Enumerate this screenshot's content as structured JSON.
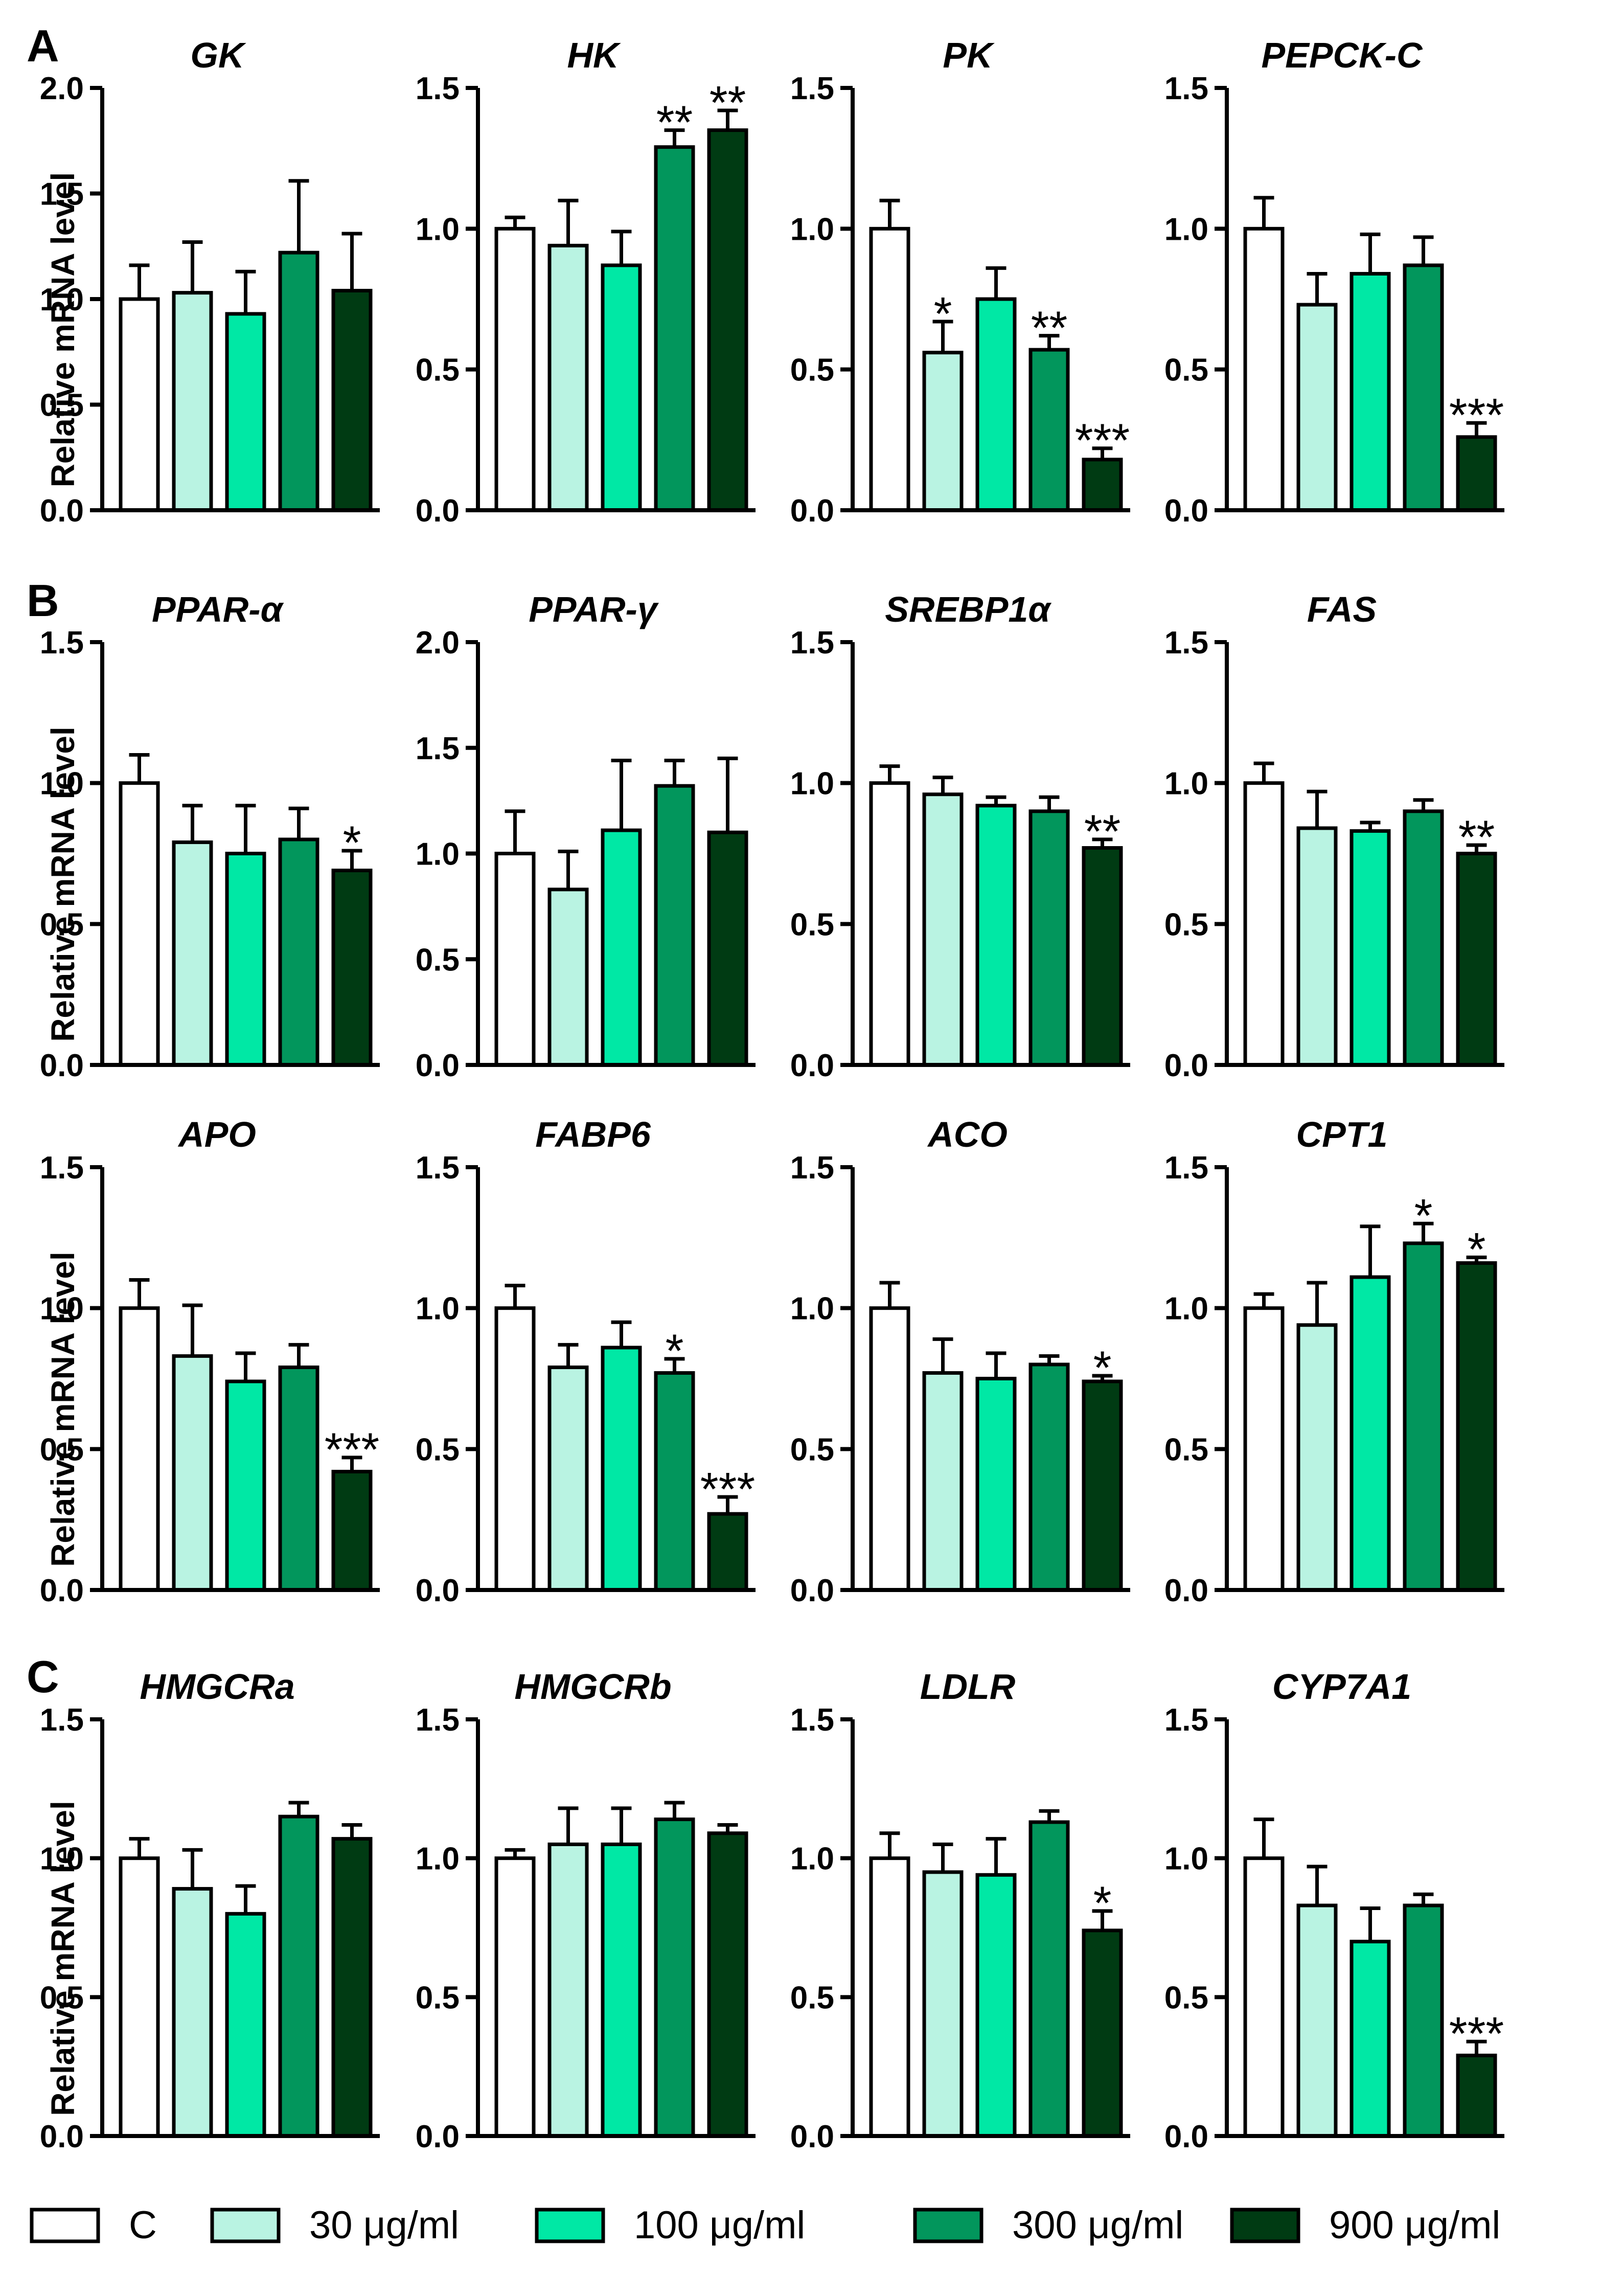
{
  "groups": [
    {
      "key": "C",
      "label": "C",
      "color": "#ffffff"
    },
    {
      "key": "d30",
      "label": "30 μg/ml",
      "color": "#b9f3e2"
    },
    {
      "key": "d100",
      "label": "100 μg/ml",
      "color": "#00e8a5"
    },
    {
      "key": "d300",
      "label": "300 μg/ml",
      "color": "#02965c"
    },
    {
      "key": "d900",
      "label": "900 μg/ml",
      "color": "#003b13"
    }
  ],
  "y_axis_label": "Relative mRNA level",
  "panels": [
    {
      "letter": "A"
    },
    {
      "letter": "B"
    },
    {
      "letter": "C"
    }
  ],
  "chart_data": [
    {
      "type": "bar",
      "title": "GK",
      "ylabel": "Relative mRNA level",
      "ylim": [
        0,
        2.0
      ],
      "yticks": [
        "0.0",
        "0.5",
        "1.0",
        "1.5",
        "2.0"
      ],
      "values": [
        1.0,
        1.03,
        0.93,
        1.22,
        1.04
      ],
      "errors": [
        0.16,
        0.24,
        0.2,
        0.34,
        0.27
      ],
      "significance": [
        "",
        "",
        "",
        "",
        ""
      ]
    },
    {
      "type": "bar",
      "title": "HK",
      "ylim": [
        0,
        1.5
      ],
      "yticks": [
        "0.0",
        "0.5",
        "1.0",
        "1.5"
      ],
      "values": [
        1.0,
        0.94,
        0.87,
        1.29,
        1.35
      ],
      "errors": [
        0.04,
        0.16,
        0.12,
        0.06,
        0.07
      ],
      "significance": [
        "",
        "",
        "",
        "**",
        "**"
      ]
    },
    {
      "type": "bar",
      "title": "PK",
      "ylim": [
        0,
        1.5
      ],
      "yticks": [
        "0.0",
        "0.5",
        "1.0",
        "1.5"
      ],
      "values": [
        1.0,
        0.56,
        0.75,
        0.57,
        0.18
      ],
      "errors": [
        0.1,
        0.11,
        0.11,
        0.05,
        0.04
      ],
      "significance": [
        "",
        "*",
        "",
        "**",
        "***"
      ]
    },
    {
      "type": "bar",
      "title": "PEPCK-C",
      "ylim": [
        0,
        1.5
      ],
      "yticks": [
        "0.0",
        "0.5",
        "1.0",
        "1.5"
      ],
      "values": [
        1.0,
        0.73,
        0.84,
        0.87,
        0.26
      ],
      "errors": [
        0.11,
        0.11,
        0.14,
        0.1,
        0.05
      ],
      "significance": [
        "",
        "",
        "",
        "",
        "***"
      ]
    },
    {
      "type": "bar",
      "title": "PPAR-α",
      "ylim": [
        0,
        1.5
      ],
      "yticks": [
        "0.0",
        "0.5",
        "1.0",
        "1.5"
      ],
      "values": [
        1.0,
        0.79,
        0.75,
        0.8,
        0.69
      ],
      "errors": [
        0.1,
        0.13,
        0.17,
        0.11,
        0.07
      ],
      "significance": [
        "",
        "",
        "",
        "",
        "*"
      ]
    },
    {
      "type": "bar",
      "title": "PPAR-γ",
      "ylim": [
        0,
        2.0
      ],
      "yticks": [
        "0.0",
        "0.5",
        "1.0",
        "1.5",
        "2.0"
      ],
      "values": [
        1.0,
        0.83,
        1.11,
        1.32,
        1.1
      ],
      "errors": [
        0.2,
        0.18,
        0.33,
        0.12,
        0.35
      ],
      "significance": [
        "",
        "",
        "",
        "",
        ""
      ]
    },
    {
      "type": "bar",
      "title": "SREBP1α",
      "ylim": [
        0,
        1.5
      ],
      "yticks": [
        "0.0",
        "0.5",
        "1.0",
        "1.5"
      ],
      "values": [
        1.0,
        0.96,
        0.92,
        0.9,
        0.77
      ],
      "errors": [
        0.06,
        0.06,
        0.03,
        0.05,
        0.03
      ],
      "significance": [
        "",
        "",
        "",
        "",
        "**"
      ]
    },
    {
      "type": "bar",
      "title": "FAS",
      "ylim": [
        0,
        1.5
      ],
      "yticks": [
        "0.0",
        "0.5",
        "1.0",
        "1.5"
      ],
      "values": [
        1.0,
        0.84,
        0.83,
        0.9,
        0.75
      ],
      "errors": [
        0.07,
        0.13,
        0.03,
        0.04,
        0.03
      ],
      "significance": [
        "",
        "",
        "",
        "",
        "**"
      ]
    },
    {
      "type": "bar",
      "title": "APO",
      "ylim": [
        0,
        1.5
      ],
      "yticks": [
        "0.0",
        "0.5",
        "1.0",
        "1.5"
      ],
      "values": [
        1.0,
        0.83,
        0.74,
        0.79,
        0.42
      ],
      "errors": [
        0.1,
        0.18,
        0.1,
        0.08,
        0.05
      ],
      "significance": [
        "",
        "",
        "",
        "",
        "***"
      ]
    },
    {
      "type": "bar",
      "title": "FABP6",
      "ylim": [
        0,
        1.5
      ],
      "yticks": [
        "0.0",
        "0.5",
        "1.0",
        "1.5"
      ],
      "values": [
        1.0,
        0.79,
        0.86,
        0.77,
        0.27
      ],
      "errors": [
        0.08,
        0.08,
        0.09,
        0.05,
        0.06
      ],
      "significance": [
        "",
        "",
        "",
        "*",
        "***"
      ]
    },
    {
      "type": "bar",
      "title": "ACO",
      "ylim": [
        0,
        1.5
      ],
      "yticks": [
        "0.0",
        "0.5",
        "1.0",
        "1.5"
      ],
      "values": [
        1.0,
        0.77,
        0.75,
        0.8,
        0.74
      ],
      "errors": [
        0.09,
        0.12,
        0.09,
        0.03,
        0.02
      ],
      "significance": [
        "",
        "",
        "",
        "",
        "*"
      ]
    },
    {
      "type": "bar",
      "title": "CPT1",
      "ylim": [
        0,
        1.5
      ],
      "yticks": [
        "0.0",
        "0.5",
        "1.0",
        "1.5"
      ],
      "values": [
        1.0,
        0.94,
        1.11,
        1.23,
        1.16
      ],
      "errors": [
        0.05,
        0.15,
        0.18,
        0.07,
        0.02
      ],
      "significance": [
        "",
        "",
        "",
        "*",
        "*"
      ]
    },
    {
      "type": "bar",
      "title": "HMGCRa",
      "ylim": [
        0,
        1.5
      ],
      "yticks": [
        "0.0",
        "0.5",
        "1.0",
        "1.5"
      ],
      "values": [
        1.0,
        0.89,
        0.8,
        1.15,
        1.07
      ],
      "errors": [
        0.07,
        0.14,
        0.1,
        0.05,
        0.05
      ],
      "significance": [
        "",
        "",
        "",
        "",
        ""
      ]
    },
    {
      "type": "bar",
      "title": "HMGCRb",
      "ylim": [
        0,
        1.5
      ],
      "yticks": [
        "0.0",
        "0.5",
        "1.0",
        "1.5"
      ],
      "values": [
        1.0,
        1.05,
        1.05,
        1.14,
        1.09
      ],
      "errors": [
        0.03,
        0.13,
        0.13,
        0.06,
        0.03
      ],
      "significance": [
        "",
        "",
        "",
        "",
        ""
      ]
    },
    {
      "type": "bar",
      "title": "LDLR",
      "ylim": [
        0,
        1.5
      ],
      "yticks": [
        "0.0",
        "0.5",
        "1.0",
        "1.5"
      ],
      "values": [
        1.0,
        0.95,
        0.94,
        1.13,
        0.74
      ],
      "errors": [
        0.09,
        0.1,
        0.13,
        0.04,
        0.07
      ],
      "significance": [
        "",
        "",
        "",
        "",
        "*"
      ]
    },
    {
      "type": "bar",
      "title": "CYP7A1",
      "ylim": [
        0,
        1.5
      ],
      "yticks": [
        "0.0",
        "0.5",
        "1.0",
        "1.5"
      ],
      "values": [
        1.0,
        0.83,
        0.7,
        0.83,
        0.29
      ],
      "errors": [
        0.14,
        0.14,
        0.12,
        0.04,
        0.05
      ],
      "significance": [
        "",
        "",
        "",
        "",
        "***"
      ]
    }
  ]
}
